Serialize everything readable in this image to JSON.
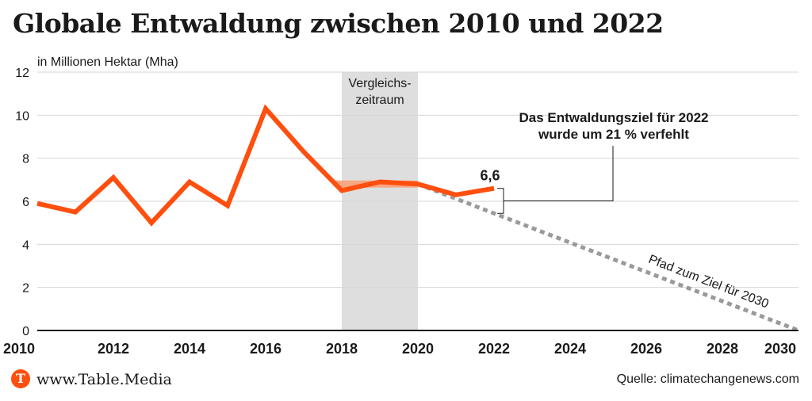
{
  "footer": {
    "brand": "www.Table.Media",
    "logo_letter": "T",
    "source": "Quelle: climatechangenews.com"
  },
  "colors": {
    "series": "#ff4f0f",
    "target_path": "#9a9a9a",
    "comparison_band": "#dedede",
    "comparison_avg": "#f6a784"
  },
  "chart_data": {
    "type": "line",
    "title": "Globale Entwaldung zwischen 2010 und 2022",
    "ylabel": "in Millionen Hektar (Mha)",
    "xlabel": "",
    "xlim": [
      2010,
      2030
    ],
    "ylim": [
      0,
      12
    ],
    "x_ticks": [
      "2010",
      "2012",
      "2014",
      "2016",
      "2018",
      "2020",
      "2022",
      "2024",
      "2026",
      "2028",
      "2030"
    ],
    "y_ticks": [
      "0",
      "2",
      "4",
      "6",
      "8",
      "10",
      "12"
    ],
    "grid": true,
    "series": [
      {
        "x": [
          2010,
          2011,
          2012,
          2013,
          2014,
          2015,
          2016,
          2017,
          2018,
          2019,
          2020,
          2021,
          2022
        ],
        "values": [
          5.9,
          5.5,
          7.1,
          5.0,
          6.9,
          5.8,
          10.3,
          8.3,
          6.5,
          6.9,
          6.8,
          6.3,
          6.6
        ]
      }
    ],
    "comparison_period": {
      "label": "Vergleichs-\nzeitraum",
      "x_range": [
        2018,
        2020
      ],
      "average": 6.8
    },
    "target_path": {
      "label": "Pfad zum Ziel für 2030",
      "x": [
        2020,
        2030
      ],
      "values": [
        6.8,
        0
      ]
    },
    "annotations": {
      "last_value_label": "6,6",
      "miss_text": "Das Entwaldungsziel für 2022\nwurde um 21 % verfehlt"
    }
  }
}
